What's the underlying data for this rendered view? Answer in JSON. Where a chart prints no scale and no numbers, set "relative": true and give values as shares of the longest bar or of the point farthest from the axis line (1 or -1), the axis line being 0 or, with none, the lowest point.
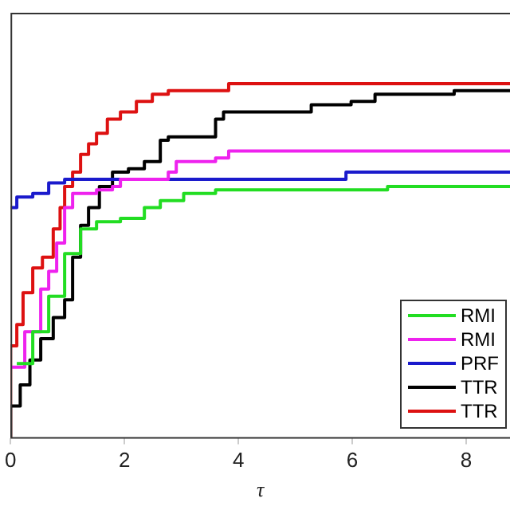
{
  "chart_data": {
    "type": "step",
    "relative": true,
    "xlabel": "τ",
    "xlim": [
      0,
      8.77
    ],
    "xticks": [
      0,
      2,
      4,
      6,
      8
    ],
    "grid": false,
    "legend": "bottom right",
    "series": [
      {
        "name": "RMI",
        "color": "#22dd22",
        "x": [
          0.11,
          0.39,
          0.67,
          0.95,
          1.23,
          1.51,
          1.93,
          2.35,
          2.63,
          3.04,
          3.6,
          3.83,
          6.54,
          6.62,
          8.77
        ],
        "values": [
          0.21,
          0.3,
          0.4,
          0.52,
          0.59,
          0.61,
          0.62,
          0.65,
          0.67,
          0.69,
          0.7,
          0.7,
          0.7,
          0.71,
          0.71
        ]
      },
      {
        "name": "RMI",
        "color": "#ee22ee",
        "x": [
          0,
          0.25,
          0.53,
          0.67,
          0.81,
          0.95,
          1.09,
          1.51,
          1.79,
          1.93,
          2.35,
          2.77,
          2.91,
          3.6,
          3.83,
          8.77
        ],
        "values": [
          0.2,
          0.3,
          0.42,
          0.47,
          0.55,
          0.65,
          0.69,
          0.7,
          0.71,
          0.73,
          0.73,
          0.75,
          0.78,
          0.79,
          0.81,
          0.81
        ]
      },
      {
        "name": "PRF",
        "color": "#1a1acc",
        "x": [
          0,
          0.11,
          0.39,
          0.67,
          0.95,
          5.56,
          5.89,
          8.77
        ],
        "values": [
          0.65,
          0.68,
          0.69,
          0.72,
          0.73,
          0.73,
          0.75,
          0.75
        ]
      },
      {
        "name": "TTR",
        "color": "#000000",
        "x": [
          0,
          0,
          0.17,
          0.34,
          0.53,
          0.75,
          0.95,
          1.09,
          1.23,
          1.37,
          1.56,
          1.79,
          2.07,
          2.35,
          2.63,
          2.77,
          3.46,
          3.6,
          3.74,
          5.14,
          5.28,
          5.98,
          6.4,
          7.79,
          7.88,
          8.77
        ],
        "values": [
          0,
          0.09,
          0.15,
          0.22,
          0.28,
          0.34,
          0.39,
          0.51,
          0.6,
          0.65,
          0.71,
          0.75,
          0.76,
          0.78,
          0.84,
          0.85,
          0.85,
          0.9,
          0.92,
          0.92,
          0.94,
          0.95,
          0.97,
          0.98,
          0.98,
          0.98
        ]
      },
      {
        "name": "TTR",
        "color": "#dd1111",
        "x": [
          0,
          0,
          0.11,
          0.22,
          0.39,
          0.56,
          0.75,
          0.87,
          0.95,
          1.09,
          1.23,
          1.37,
          1.51,
          1.7,
          1.93,
          2.21,
          2.49,
          2.77,
          3.6,
          3.83,
          8.77
        ],
        "values": [
          0,
          0.26,
          0.32,
          0.41,
          0.48,
          0.51,
          0.59,
          0.65,
          0.71,
          0.75,
          0.8,
          0.83,
          0.86,
          0.9,
          0.92,
          0.95,
          0.97,
          0.98,
          0.98,
          1,
          1
        ]
      }
    ]
  }
}
